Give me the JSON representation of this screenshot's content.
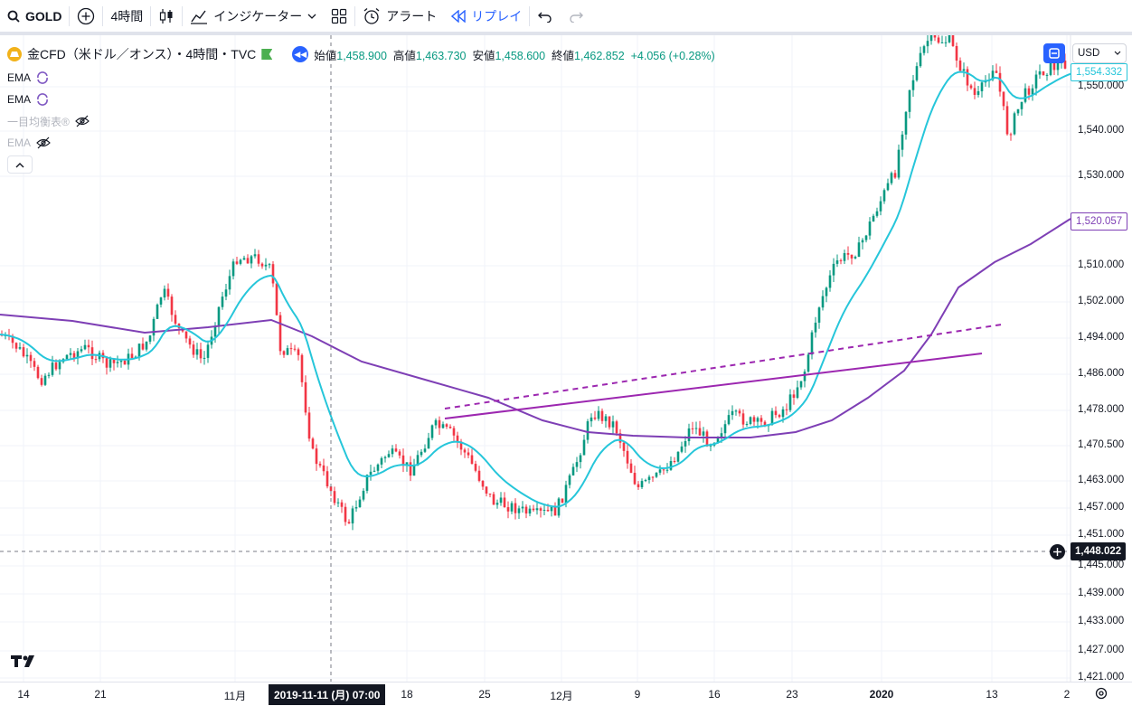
{
  "toolbar": {
    "symbol": "GOLD",
    "interval": "4時間",
    "indicators_label": "インジケーター",
    "alert_label": "アラート",
    "replay_label": "リプレイ"
  },
  "legend": {
    "title": "金CFD（米ドル／オンス）・4時間・TVC",
    "open_label": "始値",
    "open": "1,458.900",
    "high_label": "高値",
    "high": "1,463.730",
    "low_label": "安値",
    "low": "1,458.600",
    "close_label": "終値",
    "close": "1,462.852",
    "change": "+4.056 (+0.28%)"
  },
  "indicators": [
    {
      "name": "EMA"
    },
    {
      "name": "EMA"
    },
    {
      "name": "一目均衡表®"
    },
    {
      "name": "EMA"
    }
  ],
  "price_scale": {
    "currency": "USD",
    "labels": [
      "1,550.000",
      "1,540.000",
      "1,530.000",
      "1,510.000",
      "1,502.000",
      "1,494.000",
      "1,486.000",
      "1,478.000",
      "1,470.500",
      "1,463.000",
      "1,457.000",
      "1,451.000",
      "1,445.000",
      "1,439.000",
      "1,433.000",
      "1,427.000",
      "1,421.000"
    ],
    "ema_fast_value": "1,554.332",
    "ema_slow_value": "1,520.057",
    "crosshair_value": "1,448.022"
  },
  "time_axis": {
    "labels": [
      "14",
      "21",
      "11月",
      "18",
      "25",
      "12月",
      "9",
      "16",
      "23",
      "2020",
      "13",
      "2"
    ],
    "crosshair_label": "2019-11-11 (月)   07:00"
  },
  "colors": {
    "up": "#089981",
    "down": "#f23645",
    "ema_fast": "#26c6da",
    "ema_slow": "#7e3fb5",
    "trendline": "#9c27b0",
    "accent": "#2962ff"
  },
  "chart_data": {
    "type": "candlestick",
    "price_range": [
      1418,
      1565
    ],
    "date_range": [
      "2019-10-14",
      "2020-02-02"
    ],
    "series": [
      {
        "name": "EMA"
      },
      {
        "name": "EMA"
      }
    ]
  }
}
